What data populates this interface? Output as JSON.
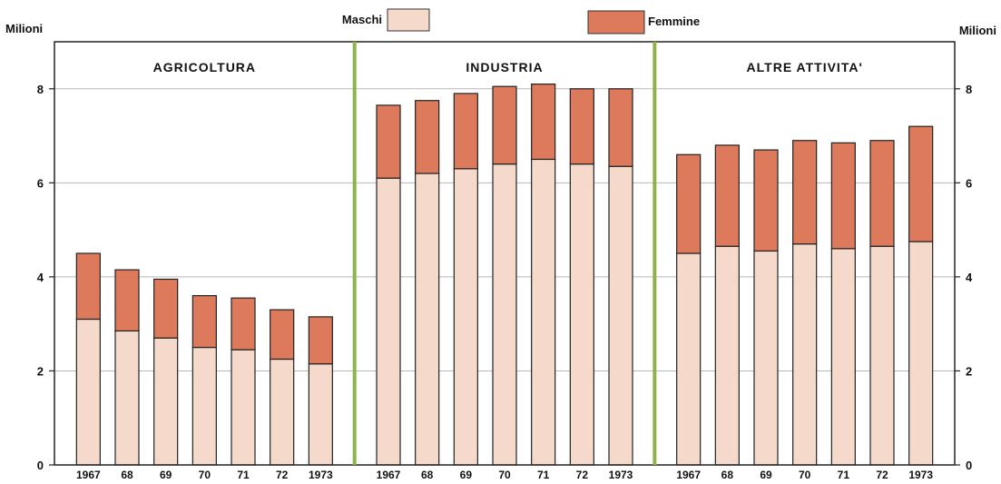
{
  "chart_data": {
    "type": "bar",
    "stacked": true,
    "ylabel_left": "Milioni",
    "ylabel_right": "Milioni",
    "ylim": [
      0,
      9
    ],
    "yticks": [
      0,
      2,
      4,
      6,
      8
    ],
    "grid": true,
    "legend_position": "top",
    "colors": {
      "Maschi": "#f5dacb",
      "Femmine": "#dd7a5c",
      "panel_divider": "#8fb24a"
    },
    "panels": [
      {
        "title": "AGRICOLTURA",
        "categories": [
          "1967",
          "68",
          "69",
          "70",
          "71",
          "72",
          "1973"
        ],
        "series": [
          {
            "name": "Maschi",
            "values": [
              3.1,
              2.85,
              2.7,
              2.5,
              2.45,
              2.25,
              2.15
            ]
          },
          {
            "name": "Femmine",
            "values": [
              1.4,
              1.3,
              1.25,
              1.1,
              1.1,
              1.05,
              1.0
            ]
          }
        ]
      },
      {
        "title": "INDUSTRIA",
        "categories": [
          "1967",
          "68",
          "69",
          "70",
          "71",
          "72",
          "1973"
        ],
        "series": [
          {
            "name": "Maschi",
            "values": [
              6.1,
              6.2,
              6.3,
              6.4,
              6.5,
              6.4,
              6.35
            ]
          },
          {
            "name": "Femmine",
            "values": [
              1.55,
              1.55,
              1.6,
              1.65,
              1.6,
              1.6,
              1.65
            ]
          }
        ]
      },
      {
        "title": "ALTRE ATTIVITA'",
        "categories": [
          "1967",
          "68",
          "69",
          "70",
          "71",
          "72",
          "1973"
        ],
        "series": [
          {
            "name": "Maschi",
            "values": [
              4.5,
              4.65,
              4.55,
              4.7,
              4.6,
              4.65,
              4.75
            ]
          },
          {
            "name": "Femmine",
            "values": [
              2.1,
              2.15,
              2.15,
              2.2,
              2.25,
              2.25,
              2.45
            ]
          }
        ]
      }
    ]
  }
}
